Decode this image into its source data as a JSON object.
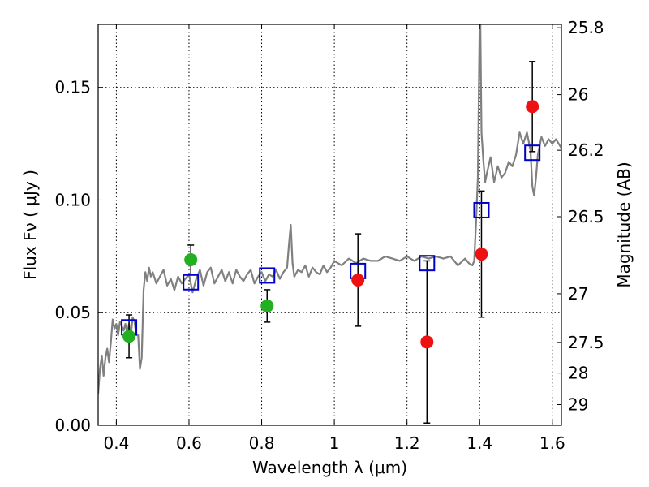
{
  "chart_data": {
    "type": "scatter",
    "xlabel": "Wavelength  λ (μm)",
    "ylabel": "Flux  Fν  ( μJy )",
    "ylabel_right": "Magnitude (AB)",
    "xlim": [
      0.35,
      1.625
    ],
    "ylim": [
      0.0,
      0.178
    ],
    "grid": true,
    "x_ticks": [
      0.4,
      0.6,
      0.8,
      1.0,
      1.2,
      1.4,
      1.6
    ],
    "x_tick_labels": [
      "0.4",
      "0.6",
      "0.8",
      "1",
      "1.2",
      "1.4",
      "1.6"
    ],
    "y_ticks": [
      0.0,
      0.05,
      0.1,
      0.15
    ],
    "y_tick_labels": [
      "0.00",
      "0.05",
      "0.10",
      "0.15"
    ],
    "right_ticks": [
      {
        "label": "25.8",
        "flux": 0.1765
      },
      {
        "label": "26",
        "flux": 0.1468
      },
      {
        "label": "26.2",
        "flux": 0.1221
      },
      {
        "label": "26.5",
        "flux": 0.0926
      },
      {
        "label": "27",
        "flux": 0.0584
      },
      {
        "label": "27.5",
        "flux": 0.0368
      },
      {
        "label": "28",
        "flux": 0.0232
      },
      {
        "label": "29",
        "flux": 0.0092
      }
    ],
    "colors": {
      "model": "#808080",
      "green": "#22b022",
      "red": "#ee1111",
      "square": "#0000cc",
      "errorbar": "#000000"
    },
    "series": [
      {
        "name": "model spectrum",
        "kind": "line",
        "x": [
          0.35,
          0.355,
          0.36,
          0.365,
          0.37,
          0.375,
          0.38,
          0.385,
          0.39,
          0.395,
          0.4,
          0.405,
          0.41,
          0.415,
          0.42,
          0.425,
          0.43,
          0.435,
          0.44,
          0.445,
          0.45,
          0.455,
          0.46,
          0.465,
          0.47,
          0.475,
          0.48,
          0.485,
          0.49,
          0.495,
          0.5,
          0.51,
          0.52,
          0.53,
          0.54,
          0.55,
          0.56,
          0.57,
          0.58,
          0.59,
          0.6,
          0.61,
          0.62,
          0.63,
          0.64,
          0.65,
          0.66,
          0.67,
          0.68,
          0.69,
          0.7,
          0.71,
          0.72,
          0.73,
          0.74,
          0.75,
          0.76,
          0.77,
          0.78,
          0.79,
          0.8,
          0.81,
          0.82,
          0.83,
          0.84,
          0.85,
          0.86,
          0.87,
          0.875,
          0.88,
          0.885,
          0.89,
          0.9,
          0.91,
          0.92,
          0.93,
          0.94,
          0.95,
          0.96,
          0.97,
          0.98,
          0.99,
          1.0,
          1.02,
          1.04,
          1.06,
          1.08,
          1.1,
          1.12,
          1.14,
          1.16,
          1.18,
          1.2,
          1.22,
          1.24,
          1.26,
          1.28,
          1.3,
          1.32,
          1.34,
          1.36,
          1.37,
          1.38,
          1.385,
          1.39,
          1.395,
          1.4,
          1.402,
          1.405,
          1.41,
          1.415,
          1.42,
          1.43,
          1.44,
          1.45,
          1.46,
          1.47,
          1.48,
          1.49,
          1.5,
          1.51,
          1.52,
          1.53,
          1.54,
          1.545,
          1.55,
          1.555,
          1.56,
          1.57,
          1.58,
          1.59,
          1.6,
          1.61,
          1.625
        ],
        "y": [
          0.014,
          0.025,
          0.031,
          0.022,
          0.03,
          0.034,
          0.028,
          0.037,
          0.047,
          0.043,
          0.045,
          0.04,
          0.046,
          0.044,
          0.042,
          0.045,
          0.041,
          0.045,
          0.04,
          0.048,
          0.046,
          0.04,
          0.04,
          0.025,
          0.03,
          0.06,
          0.068,
          0.064,
          0.07,
          0.066,
          0.068,
          0.063,
          0.066,
          0.069,
          0.062,
          0.065,
          0.06,
          0.066,
          0.063,
          0.065,
          0.067,
          0.059,
          0.065,
          0.069,
          0.062,
          0.068,
          0.07,
          0.063,
          0.066,
          0.069,
          0.064,
          0.068,
          0.063,
          0.069,
          0.066,
          0.064,
          0.067,
          0.069,
          0.063,
          0.066,
          0.068,
          0.064,
          0.067,
          0.066,
          0.069,
          0.065,
          0.068,
          0.07,
          0.08,
          0.089,
          0.072,
          0.066,
          0.069,
          0.068,
          0.071,
          0.066,
          0.07,
          0.068,
          0.067,
          0.071,
          0.068,
          0.07,
          0.073,
          0.071,
          0.074,
          0.072,
          0.074,
          0.073,
          0.073,
          0.075,
          0.074,
          0.073,
          0.075,
          0.073,
          0.075,
          0.074,
          0.075,
          0.074,
          0.075,
          0.071,
          0.074,
          0.072,
          0.071,
          0.073,
          0.09,
          0.11,
          0.178,
          0.178,
          0.13,
          0.118,
          0.108,
          0.112,
          0.119,
          0.108,
          0.115,
          0.11,
          0.112,
          0.117,
          0.115,
          0.12,
          0.13,
          0.125,
          0.13,
          0.122,
          0.106,
          0.102,
          0.11,
          0.12,
          0.128,
          0.124,
          0.127,
          0.125,
          0.127,
          0.123
        ]
      },
      {
        "name": "green photometry",
        "kind": "points",
        "x": [
          0.435,
          0.605,
          0.815
        ],
        "y": [
          0.0395,
          0.0735,
          0.053
        ],
        "yerr_low": [
          0.0095,
          0.0065,
          0.0072
        ],
        "yerr_high": [
          0.0095,
          0.0065,
          0.0072
        ]
      },
      {
        "name": "red photometry",
        "kind": "points",
        "x": [
          1.065,
          1.255,
          1.405,
          1.545
        ],
        "y": [
          0.0645,
          0.037,
          0.076,
          0.1415
        ],
        "yerr_low": [
          0.0205,
          0.036,
          0.028,
          0.02
        ],
        "yerr_high": [
          0.0205,
          0.036,
          0.028,
          0.02
        ]
      },
      {
        "name": "model bandpass fluxes",
        "kind": "squares",
        "x": [
          0.435,
          0.605,
          0.815,
          1.065,
          1.255,
          1.405,
          1.545
        ],
        "y": [
          0.0435,
          0.0635,
          0.0665,
          0.0685,
          0.072,
          0.0955,
          0.121
        ]
      }
    ]
  }
}
